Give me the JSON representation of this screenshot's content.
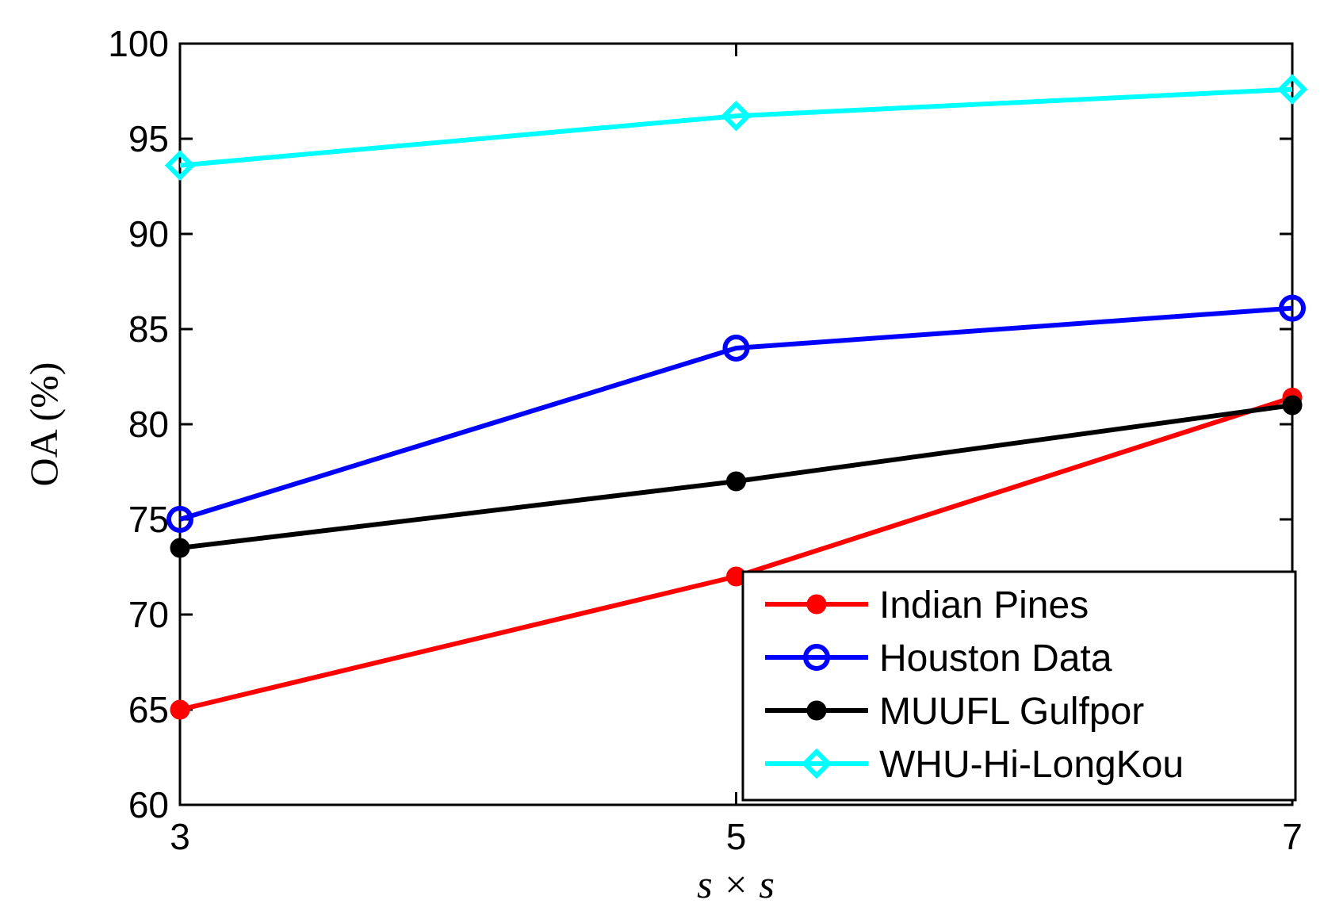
{
  "chart_data": {
    "type": "line",
    "title": "",
    "xlabel": "s × s",
    "ylabel": "OA (%)",
    "x": [
      3,
      5,
      7
    ],
    "xticks": [
      "3",
      "5",
      "7"
    ],
    "xlim": [
      3,
      7
    ],
    "ylim": [
      60,
      100
    ],
    "yticks": [
      "60",
      "65",
      "70",
      "75",
      "80",
      "85",
      "90",
      "95",
      "100"
    ],
    "grid": false,
    "legend_position": "bottom-right",
    "series": [
      {
        "name": "Indian Pines",
        "color": "#ff0000",
        "marker": "dot",
        "values": [
          65.0,
          72.0,
          81.4
        ]
      },
      {
        "name": "Houston Data",
        "color": "#0000ff",
        "marker": "circle",
        "values": [
          75.0,
          84.0,
          86.1
        ]
      },
      {
        "name": "MUUFL Gulfpor",
        "color": "#000000",
        "marker": "dot",
        "values": [
          73.5,
          77.0,
          81.0
        ]
      },
      {
        "name": "WHU-Hi-LongKou",
        "color": "#00ffff",
        "marker": "diamond",
        "values": [
          93.6,
          96.2,
          97.6
        ]
      }
    ]
  }
}
